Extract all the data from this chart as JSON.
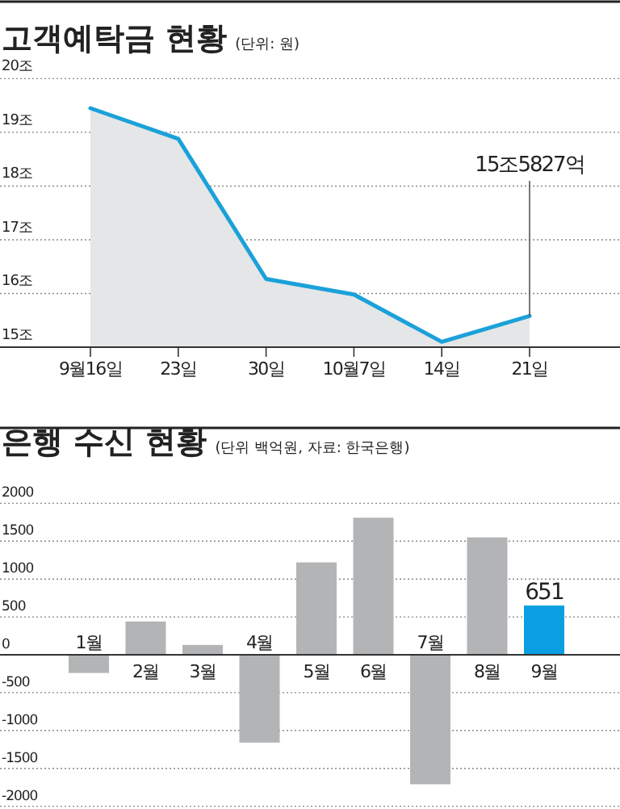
{
  "chart_data": [
    {
      "type": "area",
      "title": "고객예탁금 현황",
      "subtitle": "(단위: 원)",
      "categories": [
        "9월16일",
        "23일",
        "30일",
        "10월7일",
        "14일",
        "21일"
      ],
      "values": [
        19.45,
        18.88,
        16.27,
        15.98,
        15.1,
        15.58
      ],
      "color": "#1ba1d9",
      "ylim": [
        15,
        20
      ],
      "yticks": [
        {
          "value": 15,
          "label": "15조"
        },
        {
          "value": 16,
          "label": "16조"
        },
        {
          "value": 17,
          "label": "17조"
        },
        {
          "value": 18,
          "label": "18조"
        },
        {
          "value": 19,
          "label": "19조"
        },
        {
          "value": 20,
          "label": "20조"
        }
      ],
      "grid": "y",
      "annotations": [
        {
          "text": "15조5827억",
          "x": "21일",
          "y": 15.58
        }
      ]
    },
    {
      "type": "bar",
      "title": "은행 수신 현황",
      "subtitle": "(단위 백억원, 자료: 한국은행)",
      "categories": [
        "1월",
        "2월",
        "3월",
        "4월",
        "5월",
        "6월",
        "7월",
        "8월",
        "9월"
      ],
      "values": [
        -240,
        440,
        130,
        -1160,
        1220,
        1810,
        -1710,
        1550,
        651
      ],
      "colors": [
        "#b3b4b6",
        "#b3b4b6",
        "#b3b4b6",
        "#b3b4b6",
        "#b3b4b6",
        "#b3b4b6",
        "#b3b4b6",
        "#b3b4b6",
        "#0a9fe0"
      ],
      "value_labels": [
        null,
        null,
        null,
        null,
        null,
        null,
        null,
        null,
        "651"
      ],
      "ylim": [
        -2000,
        2000
      ],
      "yticks": [
        2000,
        1500,
        1000,
        500,
        0,
        -500,
        -1000,
        -1500,
        -2000
      ],
      "grid": "y"
    }
  ]
}
